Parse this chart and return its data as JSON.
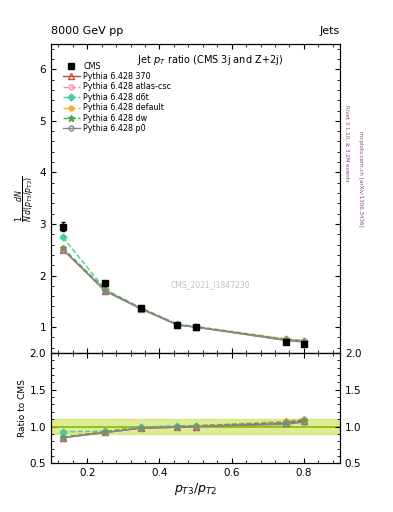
{
  "title_top": "8000 GeV pp",
  "title_right": "Jets",
  "plot_title": "Jet $p_T$ ratio (CMS 3j and Z+2j)",
  "xlabel": "$p_{T3}/p_{T2}$",
  "ylabel_main": "$\\frac{1}{N}\\frac{dN}{d(p_{T3}/p_{T2})}$",
  "ylabel_ratio": "Ratio to CMS",
  "right_label_top": "Rivet 3.1.10, ≥ 3.2M events",
  "right_label_bot": "mcplots.cern.ch [arXiv:1306.3436]",
  "watermark": "CMS_2021_I1847230",
  "x_cms": [
    0.133,
    0.25,
    0.35,
    0.45,
    0.5,
    0.75,
    0.8
  ],
  "y_cms": [
    2.95,
    1.85,
    1.38,
    1.05,
    1.0,
    0.72,
    0.67
  ],
  "y_cms_err": [
    0.08,
    0.05,
    0.03,
    0.02,
    0.02,
    0.02,
    0.02
  ],
  "series": [
    {
      "label": "Pythia 6.428 370",
      "x": [
        0.133,
        0.25,
        0.35,
        0.45,
        0.5,
        0.75,
        0.8
      ],
      "y": [
        2.5,
        1.7,
        1.35,
        1.04,
        1.0,
        0.75,
        0.72
      ],
      "color": "#cc4444",
      "linestyle": "-",
      "marker": "^",
      "fillstyle": "none",
      "linewidth": 1.0,
      "markersize": 4
    },
    {
      "label": "Pythia 6.428 atlas-csc",
      "x": [
        0.133,
        0.25,
        0.35,
        0.45,
        0.5,
        0.75,
        0.8
      ],
      "y": [
        2.5,
        1.72,
        1.36,
        1.05,
        1.01,
        0.77,
        0.74
      ],
      "color": "#ff88aa",
      "linestyle": "--",
      "marker": "o",
      "fillstyle": "none",
      "linewidth": 1.0,
      "markersize": 3.5
    },
    {
      "label": "Pythia 6.428 d6t",
      "x": [
        0.133,
        0.25,
        0.35,
        0.45,
        0.5,
        0.75,
        0.8
      ],
      "y": [
        2.74,
        1.73,
        1.37,
        1.06,
        1.01,
        0.76,
        0.73
      ],
      "color": "#44ccaa",
      "linestyle": "--",
      "marker": "D",
      "fillstyle": "full",
      "linewidth": 1.0,
      "markersize": 3.5
    },
    {
      "label": "Pythia 6.428 default",
      "x": [
        0.133,
        0.25,
        0.35,
        0.45,
        0.5,
        0.75,
        0.8
      ],
      "y": [
        2.53,
        1.72,
        1.36,
        1.05,
        1.01,
        0.77,
        0.74
      ],
      "color": "#ffaa44",
      "linestyle": "--",
      "marker": "o",
      "fillstyle": "full",
      "linewidth": 1.0,
      "markersize": 3.5
    },
    {
      "label": "Pythia 6.428 dw",
      "x": [
        0.133,
        0.25,
        0.35,
        0.45,
        0.5,
        0.75,
        0.8
      ],
      "y": [
        2.53,
        1.72,
        1.36,
        1.05,
        1.01,
        0.76,
        0.73
      ],
      "color": "#44aa44",
      "linestyle": "--",
      "marker": "*",
      "fillstyle": "full",
      "linewidth": 1.0,
      "markersize": 5
    },
    {
      "label": "Pythia 6.428 p0",
      "x": [
        0.133,
        0.25,
        0.35,
        0.45,
        0.5,
        0.75,
        0.8
      ],
      "y": [
        2.5,
        1.7,
        1.35,
        1.04,
        1.0,
        0.74,
        0.71
      ],
      "color": "#888888",
      "linestyle": "-",
      "marker": "o",
      "fillstyle": "none",
      "linewidth": 1.0,
      "markersize": 3.5
    }
  ],
  "ratio_series": [
    {
      "x": [
        0.133,
        0.25,
        0.35,
        0.45,
        0.5,
        0.75,
        0.8
      ],
      "y": [
        0.848,
        0.919,
        0.978,
        0.99,
        1.0,
        1.042,
        1.075
      ],
      "color": "#cc4444",
      "linestyle": "-",
      "marker": "^",
      "fillstyle": "none",
      "markersize": 4
    },
    {
      "x": [
        0.133,
        0.25,
        0.35,
        0.45,
        0.5,
        0.75,
        0.8
      ],
      "y": [
        0.848,
        0.93,
        0.985,
        1.0,
        1.01,
        1.069,
        1.104
      ],
      "color": "#ff88aa",
      "linestyle": "--",
      "marker": "o",
      "fillstyle": "none",
      "markersize": 3.5
    },
    {
      "x": [
        0.133,
        0.25,
        0.35,
        0.45,
        0.5,
        0.75,
        0.8
      ],
      "y": [
        0.929,
        0.935,
        0.993,
        1.01,
        1.01,
        1.056,
        1.09
      ],
      "color": "#44ccaa",
      "linestyle": "--",
      "marker": "D",
      "fillstyle": "full",
      "markersize": 3.5
    },
    {
      "x": [
        0.133,
        0.25,
        0.35,
        0.45,
        0.5,
        0.75,
        0.8
      ],
      "y": [
        0.858,
        0.93,
        0.985,
        1.0,
        1.01,
        1.069,
        1.104
      ],
      "color": "#ffaa44",
      "linestyle": "--",
      "marker": "o",
      "fillstyle": "full",
      "markersize": 3.5
    },
    {
      "x": [
        0.133,
        0.25,
        0.35,
        0.45,
        0.5,
        0.75,
        0.8
      ],
      "y": [
        0.858,
        0.93,
        0.985,
        1.0,
        1.01,
        1.056,
        1.09
      ],
      "color": "#44aa44",
      "linestyle": "--",
      "marker": "*",
      "fillstyle": "full",
      "markersize": 5
    },
    {
      "x": [
        0.133,
        0.25,
        0.35,
        0.45,
        0.5,
        0.75,
        0.8
      ],
      "y": [
        0.848,
        0.919,
        0.978,
        0.99,
        1.0,
        1.028,
        1.06
      ],
      "color": "#888888",
      "linestyle": "-",
      "marker": "o",
      "fillstyle": "none",
      "markersize": 3.5
    }
  ],
  "xlim": [
    0.1,
    0.9
  ],
  "ylim_main": [
    0.5,
    6.5
  ],
  "ylim_ratio": [
    0.5,
    2.0
  ],
  "yticks_main": [
    1,
    2,
    3,
    4,
    5,
    6
  ],
  "yticks_ratio": [
    0.5,
    1.0,
    1.5,
    2.0
  ],
  "xticks": [
    0.2,
    0.4,
    0.6,
    0.8
  ],
  "bg_color": "#ffffff",
  "ratio_band_color": "#c8e050",
  "ratio_band_alpha": 0.6,
  "ratio_line_color": "#88bb00"
}
